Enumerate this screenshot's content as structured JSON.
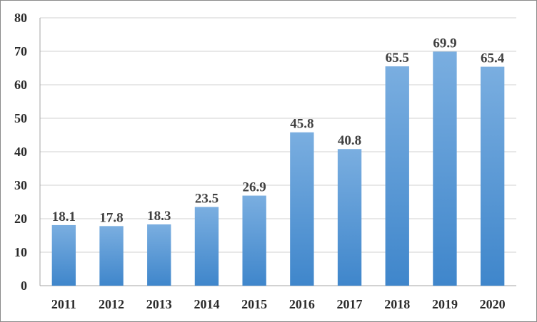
{
  "chart_data": {
    "type": "bar",
    "categories": [
      "2011",
      "2012",
      "2013",
      "2014",
      "2015",
      "2016",
      "2017",
      "2018",
      "2019",
      "2020"
    ],
    "values": [
      18.1,
      17.8,
      18.3,
      23.5,
      26.9,
      45.8,
      40.8,
      65.5,
      69.9,
      65.4
    ],
    "data_labels": [
      "18.1",
      "17.8",
      "18.3",
      "23.5",
      "26.9",
      "45.8",
      "40.8",
      "65.5",
      "69.9",
      "65.4"
    ],
    "title": "",
    "xlabel": "",
    "ylabel": "",
    "ylim": [
      0,
      80
    ],
    "yticks": [
      "0",
      "10",
      "20",
      "30",
      "40",
      "50",
      "60",
      "70",
      "80"
    ],
    "grid": true,
    "legend": "none",
    "colors": {
      "bar_top": "#7aaee0",
      "bar_bottom": "#3f86cb",
      "grid": "#d0d0d0",
      "axis": "#a6a6a6",
      "text": "#2b2b2b",
      "data_label": "#404040"
    }
  }
}
